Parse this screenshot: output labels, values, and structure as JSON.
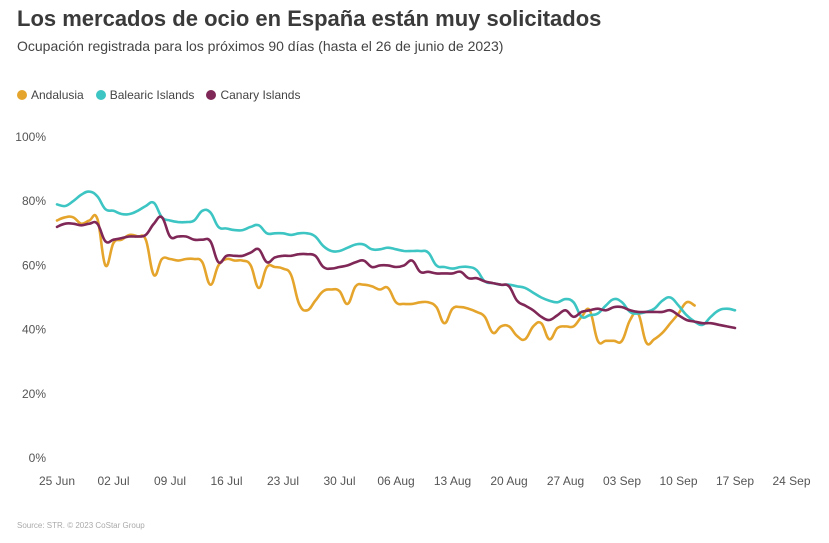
{
  "header": {
    "title": "Los mercados de ocio en España están muy solicitados",
    "subtitle": "Ocupación registrada para los próximos 90 días (hasta el 26 de junio de 2023)"
  },
  "footer": {
    "source": "Source: STR. © 2023 CoStar Group"
  },
  "chart_data": {
    "type": "line",
    "title": "Los mercados de ocio en España están muy solicitados",
    "subtitle": "Ocupación registrada para los próximos 90 días (hasta el 26 de junio de 2023)",
    "xlabel": "",
    "ylabel": "",
    "ylim": [
      0,
      100
    ],
    "y_ticks": [
      0,
      20,
      40,
      60,
      80,
      100
    ],
    "y_tick_labels": [
      "0%",
      "20%",
      "40%",
      "60%",
      "80%",
      "100%"
    ],
    "x_tick_labels": [
      "25 Jun",
      "02 Jul",
      "09 Jul",
      "16 Jul",
      "23 Jul",
      "30 Jul",
      "06 Aug",
      "13 Aug",
      "20 Aug",
      "27 Aug",
      "03 Sep",
      "10 Sep",
      "17 Sep",
      "24 Sep"
    ],
    "x_range_days": [
      0,
      91
    ],
    "grid": false,
    "legend_position": "top-left",
    "series": [
      {
        "name": "Andalusia",
        "color": "#E5A52C",
        "points": [
          [
            0,
            74
          ],
          [
            1,
            75
          ],
          [
            2,
            75
          ],
          [
            3,
            73
          ],
          [
            4,
            74
          ],
          [
            5,
            74.5
          ],
          [
            6,
            60
          ],
          [
            7,
            67
          ],
          [
            8,
            68
          ],
          [
            9,
            69.5
          ],
          [
            10,
            69
          ],
          [
            11,
            68
          ],
          [
            12,
            57
          ],
          [
            13,
            62
          ],
          [
            14,
            62
          ],
          [
            15,
            61.5
          ],
          [
            16,
            62
          ],
          [
            17,
            62
          ],
          [
            18,
            61
          ],
          [
            19,
            54
          ],
          [
            20,
            60
          ],
          [
            21,
            62
          ],
          [
            22,
            61.5
          ],
          [
            23,
            61.5
          ],
          [
            24,
            60
          ],
          [
            25,
            53
          ],
          [
            26,
            59.5
          ],
          [
            27,
            59.5
          ],
          [
            28,
            59
          ],
          [
            29,
            57
          ],
          [
            30,
            48
          ],
          [
            31,
            46
          ],
          [
            32,
            49
          ],
          [
            33,
            52
          ],
          [
            34,
            52.5
          ],
          [
            35,
            52
          ],
          [
            36,
            48
          ],
          [
            37,
            53.5
          ],
          [
            38,
            54
          ],
          [
            39,
            53.5
          ],
          [
            40,
            52.5
          ],
          [
            41,
            53
          ],
          [
            42,
            48.5
          ],
          [
            43,
            48
          ],
          [
            44,
            48
          ],
          [
            45,
            48.5
          ],
          [
            46,
            48.5
          ],
          [
            47,
            47
          ],
          [
            48,
            42
          ],
          [
            49,
            46.5
          ],
          [
            50,
            47
          ],
          [
            51,
            46.5
          ],
          [
            52,
            45.5
          ],
          [
            53,
            44
          ],
          [
            54,
            39
          ],
          [
            55,
            41
          ],
          [
            56,
            41
          ],
          [
            57,
            38
          ],
          [
            58,
            37
          ],
          [
            59,
            41
          ],
          [
            60,
            42
          ],
          [
            61,
            37
          ],
          [
            62,
            40.5
          ],
          [
            63,
            41
          ],
          [
            64,
            41
          ],
          [
            65,
            44
          ],
          [
            66,
            46
          ],
          [
            67,
            36.5
          ],
          [
            68,
            36.5
          ],
          [
            69,
            36.5
          ],
          [
            70,
            36.5
          ],
          [
            71,
            43
          ],
          [
            72,
            45
          ],
          [
            73,
            36
          ],
          [
            74,
            37
          ],
          [
            75,
            39
          ],
          [
            76,
            42
          ],
          [
            77,
            45
          ],
          [
            78,
            48.5
          ],
          [
            79,
            47.5
          ]
        ]
      },
      {
        "name": "Balearic Islands",
        "color": "#3CC5C3",
        "points": [
          [
            0,
            79
          ],
          [
            1,
            78.5
          ],
          [
            2,
            80
          ],
          [
            3,
            82
          ],
          [
            4,
            83
          ],
          [
            5,
            81.5
          ],
          [
            6,
            77.5
          ],
          [
            7,
            77
          ],
          [
            8,
            76
          ],
          [
            9,
            76
          ],
          [
            10,
            77
          ],
          [
            11,
            78.5
          ],
          [
            12,
            79.5
          ],
          [
            13,
            75
          ],
          [
            14,
            74
          ],
          [
            15,
            73.5
          ],
          [
            16,
            73.5
          ],
          [
            17,
            74
          ],
          [
            18,
            77
          ],
          [
            19,
            76.5
          ],
          [
            20,
            72
          ],
          [
            21,
            71.5
          ],
          [
            22,
            71
          ],
          [
            23,
            71
          ],
          [
            24,
            72
          ],
          [
            25,
            72.5
          ],
          [
            26,
            70
          ],
          [
            27,
            70
          ],
          [
            28,
            70
          ],
          [
            29,
            69.5
          ],
          [
            30,
            70
          ],
          [
            31,
            70
          ],
          [
            32,
            69
          ],
          [
            33,
            66
          ],
          [
            34,
            64.5
          ],
          [
            35,
            64.5
          ],
          [
            36,
            65.5
          ],
          [
            37,
            66.5
          ],
          [
            38,
            66.5
          ],
          [
            39,
            65
          ],
          [
            40,
            65
          ],
          [
            41,
            65.5
          ],
          [
            42,
            65
          ],
          [
            43,
            64.5
          ],
          [
            44,
            64.5
          ],
          [
            45,
            64.5
          ],
          [
            46,
            64
          ],
          [
            47,
            60
          ],
          [
            48,
            59.5
          ],
          [
            49,
            59
          ],
          [
            50,
            59.5
          ],
          [
            51,
            59.5
          ],
          [
            52,
            58.5
          ],
          [
            53,
            55
          ],
          [
            54,
            54.5
          ],
          [
            55,
            54
          ],
          [
            56,
            54
          ],
          [
            57,
            53.5
          ],
          [
            58,
            53
          ],
          [
            59,
            51.5
          ],
          [
            60,
            50
          ],
          [
            61,
            49
          ],
          [
            62,
            48.5
          ],
          [
            63,
            49.5
          ],
          [
            64,
            48.5
          ],
          [
            65,
            44
          ],
          [
            66,
            44.5
          ],
          [
            67,
            45
          ],
          [
            68,
            47.5
          ],
          [
            69,
            49.5
          ],
          [
            70,
            48.5
          ],
          [
            71,
            45.5
          ],
          [
            72,
            45
          ],
          [
            73,
            45.5
          ],
          [
            74,
            46.5
          ],
          [
            75,
            49
          ],
          [
            76,
            50
          ],
          [
            77,
            47.5
          ],
          [
            78,
            44.5
          ],
          [
            79,
            42.5
          ],
          [
            80,
            41.5
          ],
          [
            81,
            44
          ],
          [
            82,
            46
          ],
          [
            83,
            46.5
          ],
          [
            84,
            46
          ]
        ]
      },
      {
        "name": "Canary Islands",
        "color": "#7F2756",
        "points": [
          [
            0,
            72
          ],
          [
            1,
            73
          ],
          [
            2,
            73
          ],
          [
            3,
            72.5
          ],
          [
            4,
            73
          ],
          [
            5,
            73
          ],
          [
            6,
            67.5
          ],
          [
            7,
            68
          ],
          [
            8,
            68.5
          ],
          [
            9,
            69
          ],
          [
            10,
            69
          ],
          [
            11,
            69.5
          ],
          [
            12,
            73
          ],
          [
            13,
            75
          ],
          [
            14,
            69
          ],
          [
            15,
            69
          ],
          [
            16,
            69
          ],
          [
            17,
            68
          ],
          [
            18,
            68
          ],
          [
            19,
            67.5
          ],
          [
            20,
            61
          ],
          [
            21,
            63
          ],
          [
            22,
            63
          ],
          [
            23,
            63
          ],
          [
            24,
            64
          ],
          [
            25,
            65
          ],
          [
            26,
            61
          ],
          [
            27,
            62.5
          ],
          [
            28,
            63
          ],
          [
            29,
            63
          ],
          [
            30,
            63.5
          ],
          [
            31,
            63.5
          ],
          [
            32,
            63
          ],
          [
            33,
            59.5
          ],
          [
            34,
            59
          ],
          [
            35,
            59.5
          ],
          [
            36,
            60
          ],
          [
            37,
            61
          ],
          [
            38,
            61.5
          ],
          [
            39,
            59.5
          ],
          [
            40,
            60
          ],
          [
            41,
            60
          ],
          [
            42,
            59.5
          ],
          [
            43,
            60
          ],
          [
            44,
            61.5
          ],
          [
            45,
            58
          ],
          [
            46,
            58
          ],
          [
            47,
            57.5
          ],
          [
            48,
            57.5
          ],
          [
            49,
            57.5
          ],
          [
            50,
            58
          ],
          [
            51,
            56
          ],
          [
            52,
            56
          ],
          [
            53,
            55
          ],
          [
            54,
            54.5
          ],
          [
            55,
            54
          ],
          [
            56,
            53.5
          ],
          [
            57,
            49
          ],
          [
            58,
            47.5
          ],
          [
            59,
            46
          ],
          [
            60,
            44
          ],
          [
            61,
            43
          ],
          [
            62,
            44.5
          ],
          [
            63,
            46
          ],
          [
            64,
            44
          ],
          [
            65,
            45.5
          ],
          [
            66,
            46
          ],
          [
            67,
            46.5
          ],
          [
            68,
            46
          ],
          [
            69,
            47
          ],
          [
            70,
            47
          ],
          [
            71,
            46
          ],
          [
            72,
            45.5
          ],
          [
            73,
            45.5
          ],
          [
            74,
            45.5
          ],
          [
            75,
            45.5
          ],
          [
            76,
            46
          ],
          [
            77,
            44.5
          ],
          [
            78,
            43
          ],
          [
            79,
            42.5
          ],
          [
            80,
            42
          ],
          [
            81,
            42
          ],
          [
            82,
            41.5
          ],
          [
            83,
            41
          ],
          [
            84,
            40.5
          ]
        ]
      }
    ]
  }
}
